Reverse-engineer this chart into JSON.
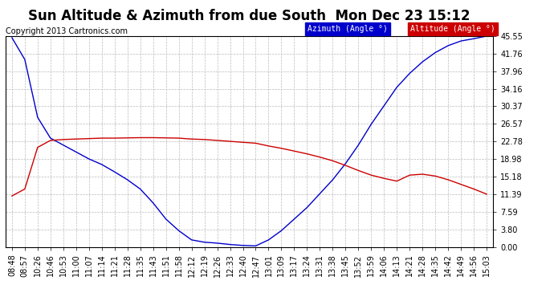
{
  "title": "Sun Altitude & Azimuth from due South  Mon Dec 23 15:12",
  "copyright": "Copyright 2013 Cartronics.com",
  "legend_azimuth": "Azimuth (Angle °)",
  "legend_altitude": "Altitude (Angle °)",
  "x_labels": [
    "08:48",
    "08:57",
    "10:26",
    "10:46",
    "10:53",
    "11:00",
    "11:07",
    "11:14",
    "11:21",
    "11:28",
    "11:35",
    "11:43",
    "11:51",
    "11:58",
    "12:12",
    "12:19",
    "12:26",
    "12:33",
    "12:40",
    "12:47",
    "13:01",
    "13:09",
    "13:17",
    "13:24",
    "13:31",
    "13:38",
    "13:45",
    "13:52",
    "13:59",
    "14:06",
    "14:13",
    "14:21",
    "14:28",
    "14:35",
    "14:42",
    "14:49",
    "14:56",
    "15:03"
  ],
  "yticks": [
    0.0,
    3.8,
    7.59,
    11.39,
    15.18,
    18.98,
    22.78,
    26.57,
    30.37,
    34.16,
    37.96,
    41.76,
    45.55
  ],
  "azimuth_values": [
    45.2,
    40.5,
    28.0,
    23.5,
    22.0,
    20.5,
    19.0,
    17.8,
    16.2,
    14.5,
    12.5,
    9.5,
    6.0,
    3.5,
    1.5,
    1.0,
    0.8,
    0.5,
    0.3,
    0.2,
    1.5,
    3.5,
    6.0,
    8.5,
    11.5,
    14.5,
    18.0,
    22.0,
    26.5,
    30.5,
    34.5,
    37.5,
    40.0,
    42.0,
    43.5,
    44.5,
    45.0,
    45.55
  ],
  "altitude_values": [
    11.0,
    12.5,
    21.5,
    23.0,
    23.2,
    23.3,
    23.4,
    23.5,
    23.5,
    23.55,
    23.6,
    23.6,
    23.55,
    23.5,
    23.3,
    23.2,
    23.0,
    22.8,
    22.6,
    22.4,
    21.8,
    21.3,
    20.7,
    20.1,
    19.4,
    18.6,
    17.6,
    16.5,
    15.5,
    14.8,
    14.2,
    15.5,
    15.7,
    15.3,
    14.5,
    13.5,
    12.5,
    11.39
  ],
  "bg_color": "#ffffff",
  "plot_bg_color": "#ffffff",
  "grid_color": "#bbbbbb",
  "azimuth_color": "#0000cc",
  "altitude_color": "#cc0000",
  "azimuth_legend_bg": "#0000cc",
  "altitude_legend_bg": "#cc0000",
  "title_fontsize": 12,
  "copyright_fontsize": 7,
  "tick_fontsize": 7,
  "ylim": [
    0.0,
    45.55
  ]
}
